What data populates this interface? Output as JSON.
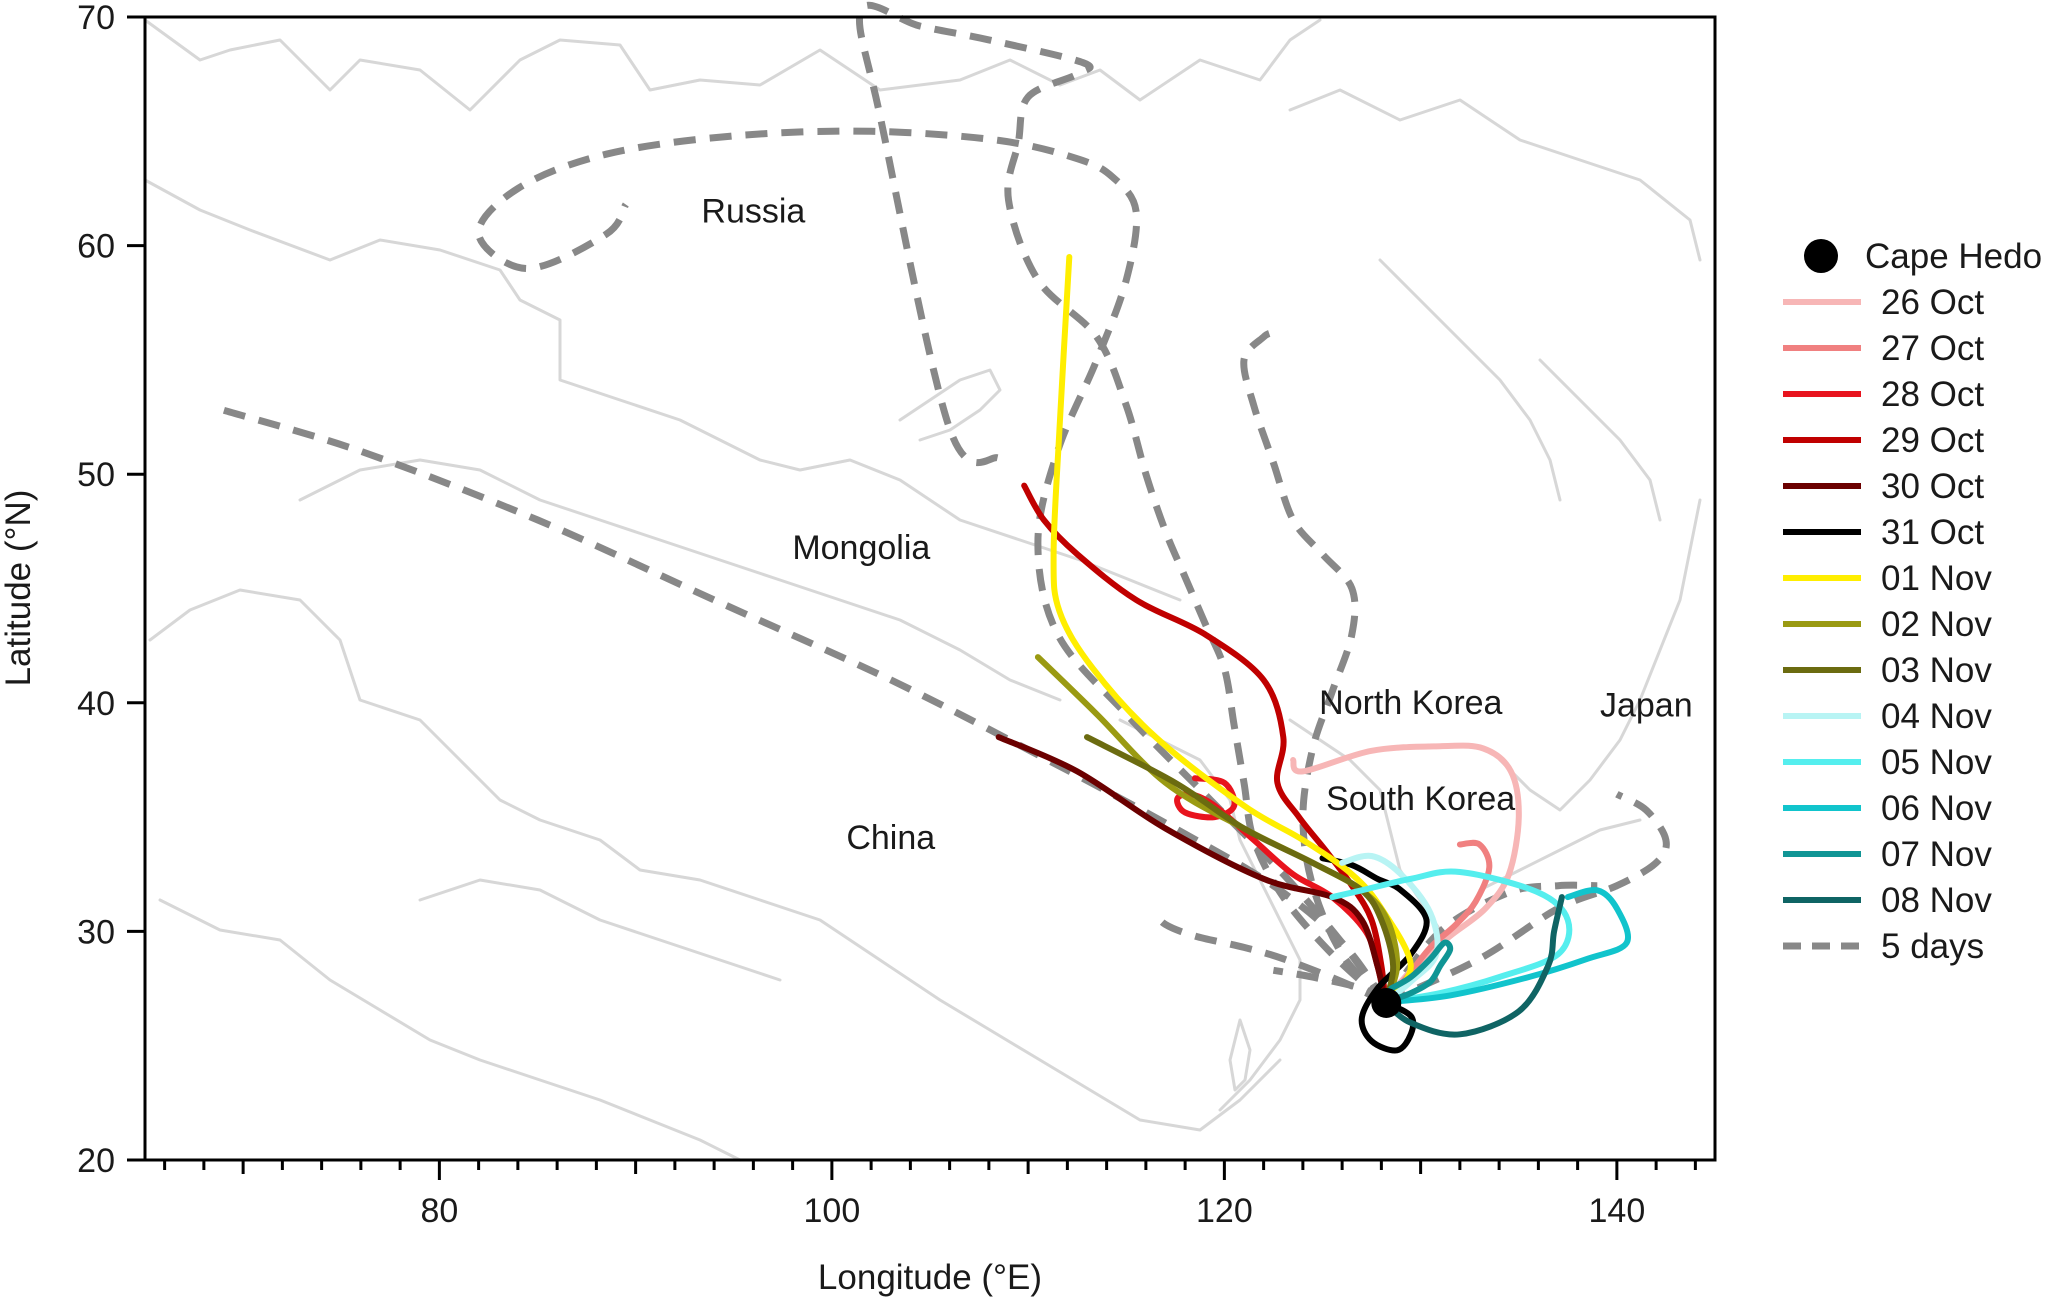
{
  "chart_data": {
    "type": "line",
    "xlabel": "Longitude (°E)",
    "ylabel": "Latitude (°N)",
    "xlim": [
      65,
      145
    ],
    "ylim": [
      20,
      70
    ],
    "x_ticks": [
      80,
      100,
      120,
      140
    ],
    "y_ticks": [
      20,
      30,
      40,
      50,
      60,
      70
    ],
    "grid": false,
    "legend_position": "right",
    "annotations": [
      {
        "text": "Russia",
        "x": 96,
        "y": 61
      },
      {
        "text": "Mongolia",
        "x": 101.5,
        "y": 46.3
      },
      {
        "text": "China",
        "x": 103,
        "y": 33.6
      },
      {
        "text": "North Korea",
        "x": 129.5,
        "y": 39.5
      },
      {
        "text": "South Korea",
        "x": 130,
        "y": 35.3
      },
      {
        "text": "Japan",
        "x": 141.5,
        "y": 39.4
      }
    ],
    "marker": {
      "name": "Cape Hedo",
      "x": 128.25,
      "y": 26.87,
      "color": "#000000"
    },
    "series": [
      {
        "name": "26 Oct",
        "color": "#f7b6b6",
        "x": [
          128.2,
          129.0,
          130.0,
          131.5,
          133.3,
          134.5,
          135.0,
          134.6,
          133.2,
          131.0,
          127.5,
          124.0,
          123.5
        ],
        "y": [
          26.9,
          27.8,
          28.7,
          29.8,
          31.0,
          32.5,
          35.0,
          37.0,
          38.0,
          38.1,
          37.9,
          37.0,
          37.5
        ]
      },
      {
        "name": "27 Oct",
        "color": "#f08080",
        "x": [
          128.2,
          129.3,
          130.5,
          131.8,
          132.8,
          133.5,
          133.0,
          132.0
        ],
        "y": [
          26.9,
          28.0,
          29.3,
          30.3,
          31.3,
          32.8,
          33.8,
          33.8
        ]
      },
      {
        "name": "28 Oct",
        "color": "#e8141e",
        "x": [
          128.2,
          127.8,
          127.2,
          125.5,
          123.5,
          121.5,
          119.5,
          118.3,
          117.6,
          118.0,
          119.5,
          120.5,
          120.0,
          118.5
        ],
        "y": [
          26.9,
          28.5,
          30.0,
          31.5,
          32.5,
          34.0,
          35.5,
          36.0,
          35.8,
          35.2,
          35.0,
          35.5,
          36.5,
          36.7
        ]
      },
      {
        "name": "29 Oct",
        "color": "#c00000",
        "x": [
          128.2,
          128.0,
          127.5,
          126.5,
          125.2,
          123.8,
          122.7,
          123.0,
          122.0,
          119.0,
          115.5,
          112.5,
          110.8,
          109.8
        ],
        "y": [
          26.9,
          28.5,
          30.5,
          32.0,
          33.5,
          35.0,
          36.5,
          38.5,
          41.0,
          43.0,
          44.5,
          46.5,
          48.0,
          49.5
        ]
      },
      {
        "name": "30 Oct",
        "color": "#6b0000",
        "x": [
          128.2,
          127.8,
          127.0,
          125.5,
          122.0,
          117.0,
          112.5,
          108.5
        ],
        "y": [
          26.9,
          28.5,
          30.5,
          31.5,
          32.3,
          34.5,
          37.0,
          38.5
        ]
      },
      {
        "name": "31 Oct",
        "color": "#000000",
        "x": [
          128.2,
          129.5,
          129.5,
          128.8,
          127.5,
          127.0,
          127.8,
          129.5,
          130.3,
          129.0,
          127.8,
          126.5,
          125.0
        ],
        "y": [
          26.9,
          26.3,
          25.5,
          24.8,
          25.2,
          26.2,
          27.5,
          29.0,
          30.5,
          31.8,
          32.3,
          32.9,
          33.2
        ]
      },
      {
        "name": "01 Nov",
        "color": "#ffee00",
        "x": [
          128.2,
          129.5,
          128.0,
          126.5,
          124.0,
          121.0,
          116.5,
          113.3,
          111.6,
          111.3,
          111.6,
          112.1
        ],
        "y": [
          26.9,
          28.5,
          31.0,
          32.5,
          34.0,
          35.5,
          38.5,
          41.5,
          44.0,
          46.5,
          52.0,
          59.5
        ]
      },
      {
        "name": "02 Nov",
        "color": "#9a9a12",
        "x": [
          128.2,
          128.8,
          128.3,
          127.0,
          124.5,
          121.0,
          117.0,
          113.5,
          110.5
        ],
        "y": [
          26.9,
          28.5,
          30.5,
          31.8,
          33.0,
          34.5,
          36.5,
          39.5,
          42.0
        ]
      },
      {
        "name": "03 Nov",
        "color": "#6b6b10",
        "x": [
          128.2,
          128.6,
          128.0,
          127.0,
          124.5,
          121.0,
          117.5,
          113.0
        ],
        "y": [
          26.9,
          28.5,
          30.5,
          31.8,
          33.0,
          34.5,
          36.5,
          38.5
        ]
      },
      {
        "name": "04 Nov",
        "color": "#b8f4f4",
        "x": [
          128.2,
          129.5,
          130.8,
          130.5,
          129.0,
          127.5,
          126.0
        ],
        "y": [
          26.9,
          27.8,
          29.0,
          30.8,
          32.5,
          33.3,
          33.0
        ]
      },
      {
        "name": "05 Nov",
        "color": "#55eeee",
        "x": [
          128.2,
          131.0,
          134.0,
          137.0,
          137.5,
          136.0,
          132.0,
          129.5,
          127.0,
          125.5
        ],
        "y": [
          26.9,
          27.3,
          28.0,
          29.0,
          30.5,
          31.7,
          32.6,
          32.3,
          31.8,
          31.5
        ]
      },
      {
        "name": "06 Nov",
        "color": "#11c4cc",
        "x": [
          128.2,
          131.5,
          135.5,
          138.5,
          140.5,
          140.0,
          139.0,
          137.5
        ],
        "y": [
          26.9,
          27.2,
          28.0,
          28.8,
          29.5,
          31.0,
          31.8,
          31.5
        ]
      },
      {
        "name": "07 Nov",
        "color": "#109595",
        "x": [
          128.2,
          129.5,
          130.5,
          131.0,
          131.5,
          131.2,
          130.5,
          129.5,
          128.5
        ],
        "y": [
          26.9,
          27.3,
          27.8,
          28.5,
          29.2,
          29.5,
          28.8,
          28.0,
          27.5
        ]
      },
      {
        "name": "08 Nov",
        "color": "#0f6464",
        "x": [
          128.2,
          129.5,
          132.0,
          135.0,
          136.5,
          136.8,
          137.2
        ],
        "y": [
          26.9,
          26.0,
          25.5,
          26.5,
          28.5,
          30.0,
          31.5
        ]
      },
      {
        "name": "5 days",
        "color": "#888888",
        "x": [],
        "y": []
      }
    ],
    "five_day_paths": [
      {
        "x": [
          128.2,
          126.0,
          122.5,
          117.5,
          111.0,
          103.0,
          94.0,
          85.0,
          76.0,
          69.0
        ],
        "y": [
          26.9,
          29.5,
          32.0,
          34.5,
          37.5,
          41.0,
          44.5,
          48.0,
          51.0,
          52.8
        ]
      },
      {
        "x": [
          128.2,
          126.0,
          123.0,
          119.0,
          115.0,
          111.5,
          110.5,
          111.5,
          113.5,
          115.0,
          115.5,
          114.3,
          112.5,
          108.5,
          102.0,
          95.0,
          88.5,
          84.0,
          82.0,
          84.5,
          88.5,
          89.5
        ],
        "y": [
          26.9,
          29.5,
          32.5,
          36.0,
          39.5,
          43.0,
          47.0,
          51.0,
          55.0,
          58.5,
          61.5,
          63.0,
          63.8,
          64.6,
          65.0,
          64.8,
          64.0,
          62.5,
          60.5,
          59.0,
          60.5,
          61.8
        ]
      },
      {
        "x": [
          128.2,
          125.5,
          123.0,
          121.5,
          121.0,
          120.5,
          120.0,
          119.0,
          118.0,
          117.0,
          116.0,
          115.0,
          113.5,
          110.5,
          109.0,
          109.5,
          110.0,
          112.5,
          112.8,
          108.0,
          104.5,
          101.5,
          102.5,
          106.0,
          108.5
        ],
        "y": [
          26.9,
          29.0,
          31.5,
          34.0,
          36.5,
          39.0,
          41.5,
          43.5,
          45.5,
          47.5,
          50.0,
          53.0,
          56.0,
          58.5,
          62.0,
          64.5,
          66.5,
          67.5,
          68.0,
          69.0,
          69.6,
          70.3,
          65.5,
          52.0,
          50.7
        ]
      },
      {
        "x": [
          128.2,
          126.0,
          124.5,
          124.0,
          124.5,
          125.5,
          126.5,
          126.5,
          125.0,
          123.5,
          122.5,
          121.5,
          121.0,
          122.0,
          122.5
        ],
        "y": [
          26.9,
          29.0,
          32.0,
          35.0,
          38.0,
          40.5,
          43.0,
          45.0,
          46.5,
          48.0,
          50.5,
          53.0,
          55.0,
          56.0,
          56.2
        ]
      },
      {
        "x": [
          128.2,
          126.0,
          123.0,
          121.0,
          118.5,
          117.0,
          116.5
        ],
        "y": [
          26.9,
          27.8,
          28.8,
          29.3,
          29.8,
          30.3,
          30.8
        ]
      },
      {
        "x": [
          128.2,
          127.0,
          124.5,
          122.5
        ],
        "y": [
          26.9,
          27.5,
          28.0,
          28.3
        ]
      },
      {
        "x": [
          128.2,
          133.0,
          137.0,
          140.0,
          142.0,
          142.5,
          141.5,
          140.0
        ],
        "y": [
          26.9,
          28.8,
          31.0,
          32.0,
          33.0,
          34.0,
          35.3,
          36.0
        ]
      },
      {
        "x": [
          128.2,
          131.0,
          134.5,
          137.0,
          139.0
        ],
        "y": [
          26.9,
          30.0,
          31.7,
          32.0,
          32.0
        ]
      }
    ]
  }
}
